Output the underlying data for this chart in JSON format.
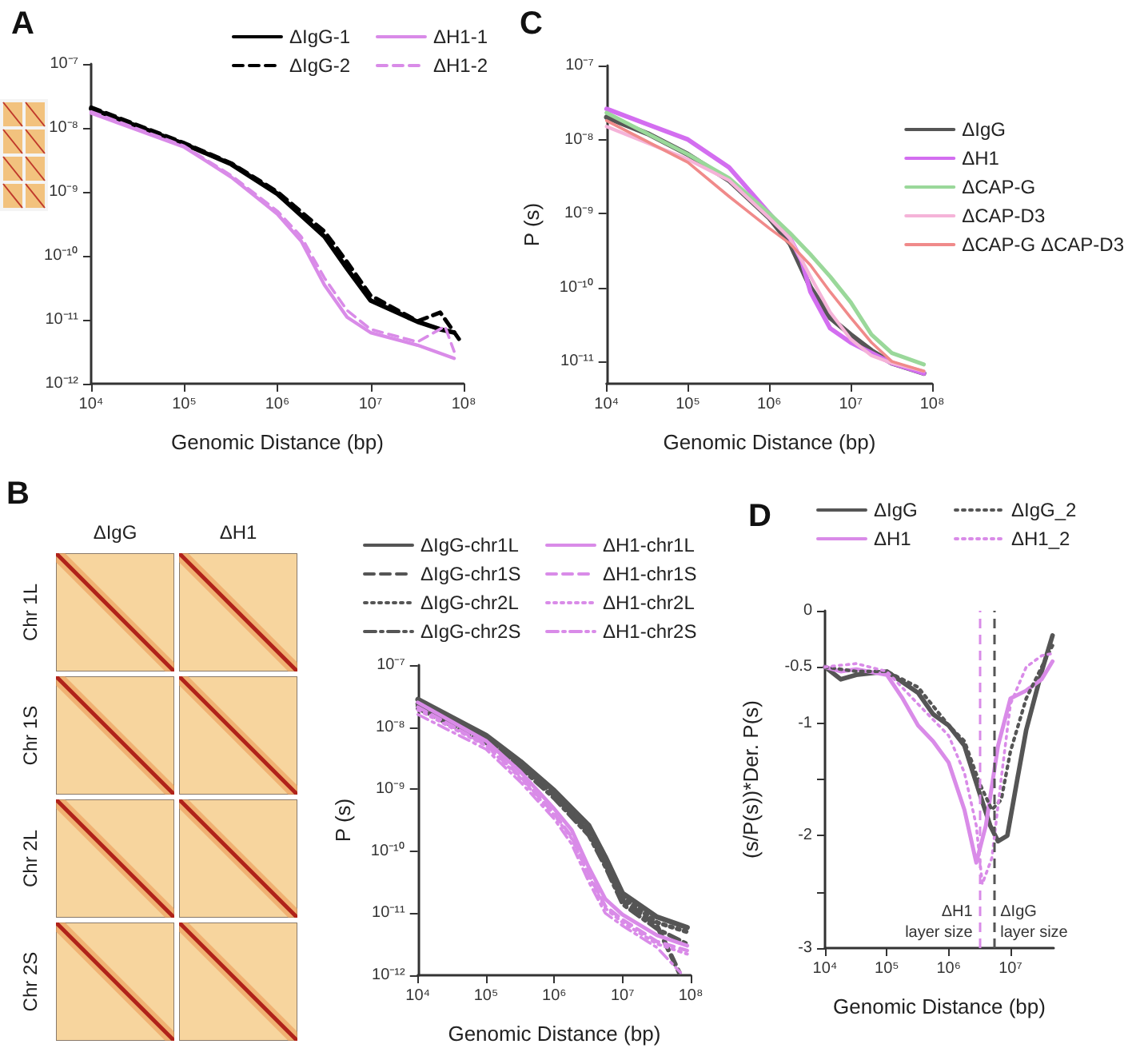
{
  "chart_data": [
    {
      "type": "line",
      "title": "A",
      "xlabel": "Genomic Distance (bp)",
      "log": "xy",
      "legend": "top right",
      "xlim": [
        10000,
        100000000
      ],
      "ylim": [
        1e-12,
        1e-07
      ],
      "xticks": [
        {
          "value": 10000,
          "label": "10⁴"
        },
        {
          "value": 100000,
          "label": "10⁵"
        },
        {
          "value": 1000000,
          "label": "10⁶"
        },
        {
          "value": 10000000,
          "label": "10⁷"
        },
        {
          "value": 100000000,
          "label": "10⁸"
        }
      ],
      "yticks": [
        {
          "value": 1e-12,
          "label": "10⁻¹²"
        },
        {
          "value": 1e-11,
          "label": "10⁻¹¹"
        },
        {
          "value": 1e-10,
          "label": "10⁻¹⁰"
        },
        {
          "value": 1e-09,
          "label": "10⁻⁹"
        },
        {
          "value": 1e-08,
          "label": "10⁻⁸"
        },
        {
          "value": 1e-07,
          "label": "10⁻⁷"
        }
      ],
      "series": [
        {
          "name": "ΔIgG-1",
          "color": "#000000",
          "line_style": "solid",
          "x": [
            10000,
            100000,
            320000,
            1000000,
            3200000,
            5600000,
            10000000,
            32000000,
            56000000,
            79000000
          ],
          "values": [
            2e-08,
            5.6e-09,
            2.7e-09,
            9.3e-10,
            2e-10,
            6.3e-11,
            2e-11,
            9.3e-12,
            7.1e-12,
            6.3e-12
          ]
        },
        {
          "name": "ΔIgG-2",
          "color": "#000000",
          "line_style": "dashed",
          "x": [
            10000,
            100000,
            320000,
            1000000,
            3200000,
            5600000,
            10000000,
            32000000,
            56000000,
            89000000
          ],
          "values": [
            2.1e-08,
            5.8e-09,
            2.8e-09,
            1e-09,
            2.4e-10,
            8e-11,
            2.4e-11,
            9.5e-12,
            1.3e-11,
            5e-12
          ]
        },
        {
          "name": "ΔH1-1",
          "color": "#d98be8",
          "line_style": "solid",
          "x": [
            10000,
            100000,
            320000,
            1000000,
            1800000,
            3200000,
            5600000,
            10000000,
            32000000,
            79000000
          ],
          "values": [
            1.7e-08,
            5e-09,
            1.7e-09,
            4.5e-10,
            1.7e-10,
            3.5e-11,
            1.1e-11,
            6.3e-12,
            4e-12,
            2.5e-12
          ]
        },
        {
          "name": "ΔH1-2",
          "color": "#d98be8",
          "line_style": "dashed",
          "x": [
            10000,
            100000,
            320000,
            1000000,
            1800000,
            3200000,
            5600000,
            10000000,
            32000000,
            63000000,
            79000000
          ],
          "values": [
            1.8e-08,
            5.2e-09,
            1.8e-09,
            5e-10,
            2e-10,
            4.5e-11,
            1.4e-11,
            7.1e-12,
            4.5e-12,
            7.9e-12,
            3.2e-12
          ]
        }
      ]
    },
    {
      "type": "line",
      "title": "C",
      "xlabel": "Genomic Distance (bp)",
      "ylabel": "P (s)",
      "log": "xy",
      "legend": "right",
      "xlim": [
        10000,
        100000000
      ],
      "ylim": [
        5e-12,
        1e-07
      ],
      "xticks": [
        {
          "value": 10000,
          "label": "10⁴"
        },
        {
          "value": 100000,
          "label": "10⁵"
        },
        {
          "value": 1000000,
          "label": "10⁶"
        },
        {
          "value": 10000000,
          "label": "10⁷"
        },
        {
          "value": 100000000,
          "label": "10⁸"
        }
      ],
      "yticks": [
        {
          "value": 1e-11,
          "label": "10⁻¹¹"
        },
        {
          "value": 1e-10,
          "label": "10⁻¹⁰"
        },
        {
          "value": 1e-09,
          "label": "10⁻⁹"
        },
        {
          "value": 1e-08,
          "label": "10⁻⁸"
        },
        {
          "value": 1e-07,
          "label": "10⁻⁷"
        }
      ],
      "series": [
        {
          "name": "ΔIgG",
          "color": "#555555",
          "x": [
            10000,
            32000,
            100000,
            320000,
            1000000,
            1800000,
            3200000,
            5600000,
            10000000,
            18000000,
            32000000,
            79000000
          ],
          "values": [
            2e-08,
            1.2e-08,
            6.3e-09,
            2.8e-09,
            8.7e-10,
            3.9e-10,
            1e-10,
            3.9e-11,
            2.3e-11,
            1.4e-11,
            9.5e-12,
            6.9e-12
          ]
        },
        {
          "name": "ΔH1",
          "color": "#d36ef0",
          "x": [
            10000,
            32000,
            100000,
            320000,
            1000000,
            1800000,
            2500000,
            3200000,
            5600000,
            10000000,
            18000000,
            32000000,
            79000000
          ],
          "values": [
            2.6e-08,
            1.6e-08,
            1e-08,
            4.2e-09,
            1e-09,
            4.6e-10,
            2.3e-10,
            8.7e-11,
            2.8e-11,
            1.8e-11,
            1.3e-11,
            9.5e-12,
            6.9e-12
          ]
        },
        {
          "name": "ΔCAP-G",
          "color": "#9ad89a",
          "x": [
            10000,
            100000,
            320000,
            1000000,
            1800000,
            3200000,
            5600000,
            10000000,
            18000000,
            32000000,
            79000000
          ],
          "values": [
            2.3e-08,
            6.3e-09,
            3e-09,
            1e-09,
            5.4e-10,
            2.8e-10,
            1.4e-10,
            6.3e-11,
            2.3e-11,
            1.3e-11,
            9.1e-12
          ]
        },
        {
          "name": "ΔCAP-D3",
          "color": "#f5b3d8",
          "x": [
            10000,
            100000,
            320000,
            1000000,
            1800000,
            3200000,
            5600000,
            10000000,
            18000000,
            32000000,
            79000000
          ],
          "values": [
            1.5e-08,
            5.4e-09,
            2.8e-09,
            8.7e-10,
            4.6e-10,
            1.4e-10,
            4.6e-11,
            2e-11,
            1.2e-11,
            9.5e-12,
            7.4e-12
          ]
        },
        {
          "name": "ΔCAP-G ΔCAP-D3",
          "color": "#f08a8a",
          "x": [
            10000,
            100000,
            320000,
            1000000,
            1800000,
            3200000,
            5600000,
            10000000,
            18000000,
            32000000,
            79000000
          ],
          "values": [
            1.8e-08,
            4.9e-09,
            1.7e-09,
            6.3e-10,
            3.9e-10,
            2e-10,
            8.7e-11,
            3.9e-11,
            1.8e-11,
            1e-11,
            7.4e-12
          ]
        }
      ]
    },
    {
      "type": "other",
      "title": "B",
      "categories": [
        "ΔIgG",
        "ΔH1"
      ],
      "y_categories": [
        "Chr 1L",
        "Chr 1S",
        "Chr 2L",
        "Chr 2S"
      ]
    },
    {
      "type": "line",
      "xlabel": "Genomic Distance (bp)",
      "ylabel": "P (s)",
      "log": "xy",
      "legend": "top",
      "xlim": [
        10000,
        100000000
      ],
      "ylim": [
        1e-12,
        1e-07
      ],
      "xticks": [
        {
          "value": 10000,
          "label": "10⁴"
        },
        {
          "value": 100000,
          "label": "10⁵"
        },
        {
          "value": 1000000,
          "label": "10⁶"
        },
        {
          "value": 10000000,
          "label": "10⁷"
        },
        {
          "value": 100000000,
          "label": "10⁸"
        }
      ],
      "yticks": [
        {
          "value": 1e-12,
          "label": "10⁻¹²"
        },
        {
          "value": 1e-11,
          "label": "10⁻¹¹"
        },
        {
          "value": 1e-10,
          "label": "10⁻¹⁰"
        },
        {
          "value": 1e-09,
          "label": "10⁻⁹"
        },
        {
          "value": 1e-08,
          "label": "10⁻⁸"
        },
        {
          "value": 1e-07,
          "label": "10⁻⁷"
        }
      ],
      "series": [
        {
          "name": "ΔIgG-chr1L",
          "color": "#555555",
          "line_style": "solid",
          "x": [
            10000,
            100000,
            320000,
            1000000,
            3200000,
            5600000,
            10000000,
            32000000,
            89000000
          ],
          "values": [
            2.8e-08,
            7.4e-09,
            2.8e-09,
            9.5e-10,
            2.6e-10,
            8.1e-11,
            2.1e-11,
            8.7e-12,
            5.9e-12
          ]
        },
        {
          "name": "ΔIgG-chr1S",
          "color": "#555555",
          "line_style": "dashed",
          "x": [
            10000,
            100000,
            320000,
            1000000,
            3200000,
            5600000,
            10000000,
            32000000,
            68000000
          ],
          "values": [
            2.4e-08,
            6.3e-09,
            2.4e-09,
            7.9e-10,
            2e-10,
            6.3e-11,
            1.6e-11,
            6.3e-12,
            1.1e-12
          ]
        },
        {
          "name": "ΔIgG-chr2L",
          "color": "#555555",
          "line_style": "dotted",
          "x": [
            10000,
            100000,
            320000,
            1000000,
            3200000,
            5600000,
            10000000,
            32000000,
            89000000
          ],
          "values": [
            2.2e-08,
            6.6e-09,
            2.5e-09,
            8.3e-10,
            2.2e-10,
            7.1e-11,
            1.8e-11,
            7.1e-12,
            5e-12
          ]
        },
        {
          "name": "ΔIgG-chr2S",
          "color": "#555555",
          "line_style": "dashdot",
          "x": [
            10000,
            100000,
            320000,
            1000000,
            3200000,
            5600000,
            10000000,
            32000000,
            89000000
          ],
          "values": [
            2e-08,
            5.6e-09,
            2.2e-09,
            7.1e-10,
            1.8e-10,
            5.6e-11,
            1.4e-11,
            5.6e-12,
            3.2e-12
          ]
        },
        {
          "name": "ΔH1-chr1L",
          "color": "#d98be8",
          "line_style": "solid",
          "x": [
            10000,
            100000,
            320000,
            1000000,
            1800000,
            3200000,
            5600000,
            10000000,
            32000000,
            89000000
          ],
          "values": [
            2.5e-08,
            6e-09,
            1.9e-09,
            4.8e-10,
            2.2e-10,
            5.5e-11,
            1.7e-11,
            9.5e-12,
            4.4e-12,
            3e-12
          ]
        },
        {
          "name": "ΔH1-chr1S",
          "color": "#d98be8",
          "line_style": "dashed",
          "x": [
            10000,
            100000,
            320000,
            1000000,
            1800000,
            3200000,
            5600000,
            10000000,
            32000000,
            89000000
          ],
          "values": [
            2.1e-08,
            5.2e-09,
            1.6e-09,
            4e-10,
            1.7e-10,
            4.2e-11,
            1.3e-11,
            7.9e-12,
            3.5e-12,
            2.5e-12
          ]
        },
        {
          "name": "ΔH1-chr2L",
          "color": "#d98be8",
          "line_style": "dotted",
          "x": [
            10000,
            100000,
            320000,
            1000000,
            1800000,
            3200000,
            5600000,
            10000000,
            32000000,
            89000000
          ],
          "values": [
            1.9e-08,
            5e-09,
            1.5e-09,
            3.8e-10,
            1.6e-10,
            4e-11,
            1.2e-11,
            7.1e-12,
            3.2e-12,
            2.2e-12
          ]
        },
        {
          "name": "ΔH1-chr2S",
          "color": "#d98be8",
          "line_style": "dashdot",
          "x": [
            10000,
            100000,
            320000,
            1000000,
            1800000,
            3200000,
            5600000,
            10000000,
            32000000,
            71000000
          ],
          "values": [
            1.6e-08,
            4.4e-09,
            1.3e-09,
            3.3e-10,
            1.3e-10,
            3.2e-11,
            1e-11,
            6.3e-12,
            2.8e-12,
            1.1e-12
          ]
        }
      ]
    },
    {
      "type": "line",
      "title": "D",
      "xlabel": "Genomic Distance (bp)",
      "ylabel": "(s/P(s))*Der. P(s)",
      "log": "x",
      "legend": "top",
      "xlim": [
        10000,
        50000000
      ],
      "ylim": [
        -3,
        0
      ],
      "xticks": [
        {
          "value": 10000,
          "label": "10⁴"
        },
        {
          "value": 100000,
          "label": "10⁵"
        },
        {
          "value": 1000000,
          "label": "10⁶"
        },
        {
          "value": 10000000,
          "label": "10⁷"
        }
      ],
      "yticks": [
        -3,
        {
          "value": -2.5,
          "label": null
        },
        -2,
        {
          "value": -1.5,
          "label": null
        },
        -1,
        -0.5,
        0
      ],
      "ref_lines": [
        {
          "axis": "x",
          "value": 3100000,
          "label": "ΔH1\nlayer size",
          "color": "#d98be8",
          "line_style": "dashed"
        },
        {
          "axis": "x",
          "value": 5400000,
          "label": "ΔIgG\nlayer size",
          "color": "#555555",
          "line_style": "dashed"
        }
      ],
      "series": [
        {
          "name": "ΔIgG",
          "color": "#555555",
          "line_style": "solid",
          "x": [
            10000,
            18000,
            32000,
            100000,
            320000,
            560000,
            1000000,
            1800000,
            3200000,
            4700000,
            6300000,
            8900000,
            13000000,
            18000000,
            32000000,
            48000000
          ],
          "values": [
            -0.5,
            -0.61,
            -0.57,
            -0.54,
            -0.73,
            -0.92,
            -1.02,
            -1.2,
            -1.63,
            -1.91,
            -2.05,
            -2.0,
            -1.49,
            -1.06,
            -0.54,
            -0.22
          ]
        },
        {
          "name": "ΔH1",
          "color": "#d98be8",
          "line_style": "solid",
          "x": [
            10000,
            18000,
            32000,
            100000,
            180000,
            320000,
            560000,
            1000000,
            1800000,
            2800000,
            4000000,
            6300000,
            10000000,
            18000000,
            32000000,
            48000000
          ],
          "values": [
            -0.5,
            -0.54,
            -0.52,
            -0.57,
            -0.78,
            -1.02,
            -1.16,
            -1.35,
            -1.77,
            -2.24,
            -1.91,
            -1.2,
            -0.78,
            -0.71,
            -0.61,
            -0.45
          ]
        },
        {
          "name": "ΔIgG_2",
          "color": "#555555",
          "line_style": "dotted",
          "x": [
            10000,
            32000,
            100000,
            320000,
            1000000,
            1800000,
            3200000,
            5000000,
            7100000,
            10000000,
            18000000,
            32000000,
            48000000
          ],
          "values": [
            -0.5,
            -0.54,
            -0.54,
            -0.68,
            -1.02,
            -1.16,
            -1.54,
            -1.77,
            -1.68,
            -1.25,
            -0.78,
            -0.5,
            -0.31
          ]
        },
        {
          "name": "ΔH1_2",
          "color": "#d98be8",
          "line_style": "dotted",
          "x": [
            10000,
            32000,
            100000,
            320000,
            1000000,
            1800000,
            2800000,
            3500000,
            5000000,
            7100000,
            10000000,
            18000000,
            32000000,
            48000000
          ],
          "values": [
            -0.5,
            -0.47,
            -0.54,
            -0.83,
            -1.11,
            -1.44,
            -1.91,
            -2.43,
            -2.2,
            -1.49,
            -0.83,
            -0.5,
            -0.4,
            -0.38
          ]
        }
      ]
    }
  ]
}
